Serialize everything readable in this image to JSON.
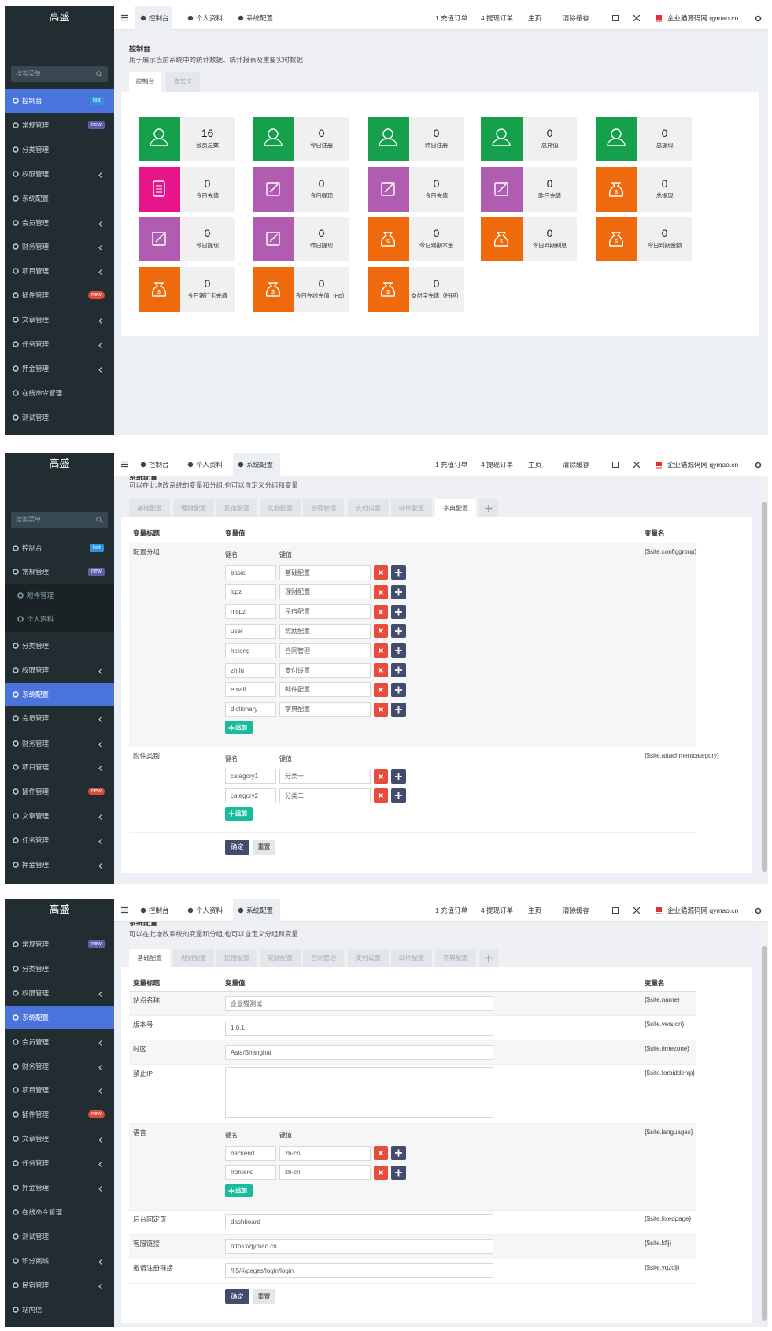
{
  "topnav": {
    "tabs": [
      "控制台",
      "个人资料",
      "系统配置"
    ],
    "links": [
      "1 充值订单",
      "4 提现订单",
      "主页",
      "清除缓存"
    ],
    "site": "企业猫源码网 qymao.cn"
  },
  "sidebar": {
    "brand": "高盛",
    "search": "搜索菜单"
  },
  "dashboard": {
    "menu": [
      {
        "label": "控制台",
        "badge": "hot",
        "badge_color": "#2f8fe0",
        "active": true
      },
      {
        "label": "常规管理",
        "badge": "new",
        "badge_color": "#605ca8"
      },
      {
        "label": "分类管理"
      },
      {
        "label": "权限管理",
        "arrow": true
      },
      {
        "label": "系统配置"
      },
      {
        "label": "会员管理",
        "arrow": true
      },
      {
        "label": "财务管理",
        "arrow": true
      },
      {
        "label": "项目管理",
        "arrow": true
      },
      {
        "label": "插件管理",
        "badge": "new",
        "badge_color": "#dd4b39"
      },
      {
        "label": "文章管理",
        "arrow": true
      },
      {
        "label": "任务管理",
        "arrow": true
      },
      {
        "label": "押金管理",
        "arrow": true
      },
      {
        "label": "在线命令管理"
      },
      {
        "label": "测试管理"
      }
    ],
    "title": "控制台",
    "description": "用于展示当前系统中的统计数据、统计报表及重要实时数据",
    "tabs": [
      "控制台",
      "自定义"
    ],
    "stats": [
      {
        "value": 16,
        "label": "会员总数",
        "color": "#16a04c"
      },
      {
        "value": 0,
        "label": "今日注册",
        "color": "#16a04c"
      },
      {
        "value": 0,
        "label": "昨日注册",
        "color": "#16a04c"
      },
      {
        "value": 0,
        "label": "总充值",
        "color": "#16a04c"
      },
      {
        "value": 0,
        "label": "总提现",
        "color": "#16a04c"
      },
      {
        "value": 0,
        "label": "今日充值",
        "color": "#e6168a"
      },
      {
        "value": 0,
        "label": "今日提现",
        "color": "#b05cb0"
      },
      {
        "value": 0,
        "label": "今日充值",
        "color": "#b05cb0"
      },
      {
        "value": 0,
        "label": "昨日充值",
        "color": "#b05cb0"
      },
      {
        "value": 0,
        "label": "总提现",
        "color": "#ee6a0c"
      },
      {
        "value": 0,
        "label": "今日提现",
        "color": "#b05cb0"
      },
      {
        "value": 0,
        "label": "昨日提现",
        "color": "#b05cb0"
      },
      {
        "value": 0,
        "label": "今日到期本金",
        "color": "#ee6a0c"
      },
      {
        "value": 0,
        "label": "今日到期利息",
        "color": "#ee6a0c"
      },
      {
        "value": 0,
        "label": "今日到期金额",
        "color": "#ee6a0c"
      },
      {
        "value": 0,
        "label": "今日银行卡充值",
        "color": "#ee6a0c"
      },
      {
        "value": 0,
        "label": "今日在线充值（H5）",
        "color": "#ee6a0c"
      },
      {
        "value": 0,
        "label": "支付宝充值（扫码）",
        "color": "#ee6a0c"
      }
    ]
  },
  "config_page": {
    "title": "系统配置",
    "description": "可以在此增改系统的变量和分组,也可以自定义分组和变量",
    "tabs": [
      "基础配置",
      "理财配置",
      "民宿配置",
      "奖励配置",
      "合同管理",
      "支付设置",
      "邮件配置",
      "字典配置"
    ],
    "columns": [
      "变量标题",
      "变量值",
      "变量名"
    ],
    "kv_headers": [
      "键名",
      "键值"
    ],
    "append": "追加",
    "submit": "确定",
    "reset": "重置"
  },
  "dictionary_config": {
    "menu": [
      {
        "label": "控制台",
        "badge": "hot",
        "badge_color": "#2f8fe0"
      },
      {
        "label": "常规管理",
        "badge": "new",
        "badge_color": "#605ca8"
      },
      {
        "label": "附件管理",
        "sub": true
      },
      {
        "label": "个人资料",
        "sub": true
      },
      {
        "label": "分类管理"
      },
      {
        "label": "权限管理",
        "arrow": true
      },
      {
        "label": "系统配置",
        "active": true
      },
      {
        "label": "会员管理",
        "arrow": true
      },
      {
        "label": "财务管理",
        "arrow": true
      },
      {
        "label": "项目管理",
        "arrow": true
      },
      {
        "label": "插件管理",
        "badge": "new",
        "badge_color": "#dd4b39"
      },
      {
        "label": "文章管理",
        "arrow": true
      },
      {
        "label": "任务管理",
        "arrow": true
      },
      {
        "label": "押金管理",
        "arrow": true
      }
    ],
    "active_tab": 7,
    "rows": [
      {
        "title": "配置分组",
        "name": "{$site.configgroup}",
        "pairs": [
          [
            "basic",
            "基础配置"
          ],
          [
            "lcpz",
            "理财配置"
          ],
          [
            "mspz",
            "民宿配置"
          ],
          [
            "user",
            "奖励配置"
          ],
          [
            "hetong",
            "合同管理"
          ],
          [
            "zhifu",
            "支付设置"
          ],
          [
            "email",
            "邮件配置"
          ],
          [
            "dictionary",
            "字典配置"
          ]
        ]
      },
      {
        "title": "附件类别",
        "name": "{$site.attachmentcategory}",
        "pairs": [
          [
            "category1",
            "分类一"
          ],
          [
            "category2",
            "分类二"
          ]
        ]
      }
    ]
  },
  "basic_config": {
    "menu": [
      {
        "label": "常规管理",
        "badge": "new",
        "badge_color": "#605ca8"
      },
      {
        "label": "分类管理"
      },
      {
        "label": "权限管理",
        "arrow": true
      },
      {
        "label": "系统配置",
        "active": true
      },
      {
        "label": "会员管理",
        "arrow": true
      },
      {
        "label": "财务管理",
        "arrow": true
      },
      {
        "label": "项目管理",
        "arrow": true
      },
      {
        "label": "插件管理",
        "badge": "new",
        "badge_color": "#dd4b39"
      },
      {
        "label": "文章管理",
        "arrow": true
      },
      {
        "label": "任务管理",
        "arrow": true
      },
      {
        "label": "押金管理",
        "arrow": true
      },
      {
        "label": "在线命令管理"
      },
      {
        "label": "测试管理"
      },
      {
        "label": "积分商城",
        "arrow": true
      },
      {
        "label": "民宿管理",
        "arrow": true
      },
      {
        "label": "站内信"
      }
    ],
    "active_tab": 0,
    "rows": [
      {
        "title": "站点名称",
        "value": "企业猫测试",
        "name": "{$site.name}"
      },
      {
        "title": "版本号",
        "value": "1.0.1",
        "name": "{$site.version}"
      },
      {
        "title": "时区",
        "value": "Asia/Shanghai",
        "name": "{$site.timezone}"
      },
      {
        "title": "禁止IP",
        "textarea": true,
        "name": "{$site.forbiddenip}"
      },
      {
        "title": "语言",
        "name": "{$site.languages}",
        "pairs": [
          [
            "backend",
            "zh-cn"
          ],
          [
            "frontend",
            "zh-cn"
          ]
        ]
      },
      {
        "title": "后台固定页",
        "value": "dashboard",
        "name": "{$site.fixedpage}"
      },
      {
        "title": "客服链接",
        "value": "https://qymao.cn",
        "name": "{$site.kflj}"
      },
      {
        "title": "邀请注册链接",
        "value": "/h5/#/pages/login/login",
        "name": "{$site.yqzclj}"
      }
    ]
  }
}
